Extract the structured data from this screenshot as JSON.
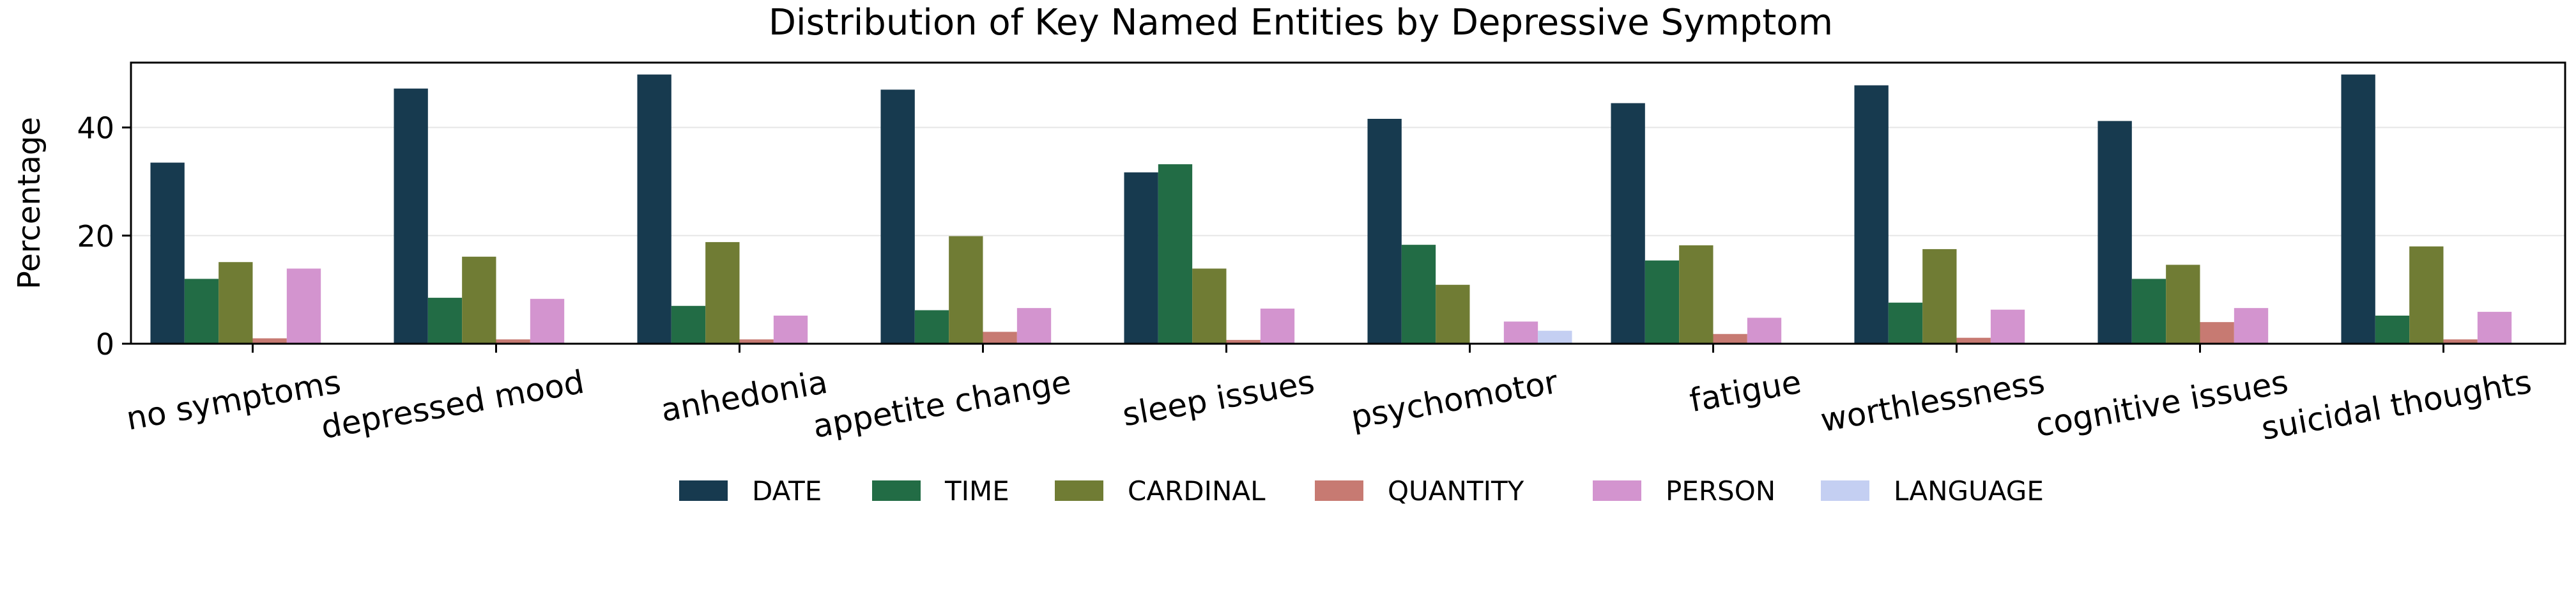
{
  "chart_data": {
    "type": "bar",
    "title": "Distribution of Key Named Entities by Depressive Symptom",
    "xlabel": "",
    "ylabel": "Percentage",
    "ylim": [
      0,
      52
    ],
    "yticks": [
      0,
      20,
      40
    ],
    "grid": true,
    "legend_position": "bottom",
    "categories": [
      "no symptoms",
      "depressed mood",
      "anhedonia",
      "appetite change",
      "sleep issues",
      "psychomotor",
      "fatigue",
      "worthlessness",
      "cognitive issues",
      "suicidal thoughts"
    ],
    "series": [
      {
        "name": "DATE",
        "color": "#173a4f",
        "values": [
          33.5,
          47.2,
          49.8,
          47.0,
          31.7,
          41.6,
          44.5,
          47.8,
          41.2,
          49.8
        ]
      },
      {
        "name": "TIME",
        "color": "#226c45",
        "values": [
          12.0,
          8.5,
          7.0,
          6.2,
          33.2,
          18.3,
          15.4,
          7.6,
          12.0,
          5.2
        ]
      },
      {
        "name": "CARDINAL",
        "color": "#707c34",
        "values": [
          15.1,
          16.1,
          18.8,
          19.9,
          13.9,
          10.9,
          18.2,
          17.5,
          14.6,
          18.0
        ]
      },
      {
        "name": "QUANTITY",
        "color": "#c77a72",
        "values": [
          1.0,
          0.8,
          0.8,
          2.2,
          0.7,
          0.0,
          1.8,
          1.1,
          4.0,
          0.8
        ]
      },
      {
        "name": "PERSON",
        "color": "#d394cf",
        "values": [
          13.9,
          8.3,
          5.2,
          6.6,
          6.5,
          4.1,
          4.8,
          6.3,
          6.6,
          5.9
        ]
      },
      {
        "name": "LANGUAGE",
        "color": "#c4cff2",
        "values": [
          0.0,
          0.0,
          0.0,
          0.0,
          0.0,
          2.4,
          0.0,
          0.0,
          0.0,
          0.0
        ]
      }
    ]
  }
}
